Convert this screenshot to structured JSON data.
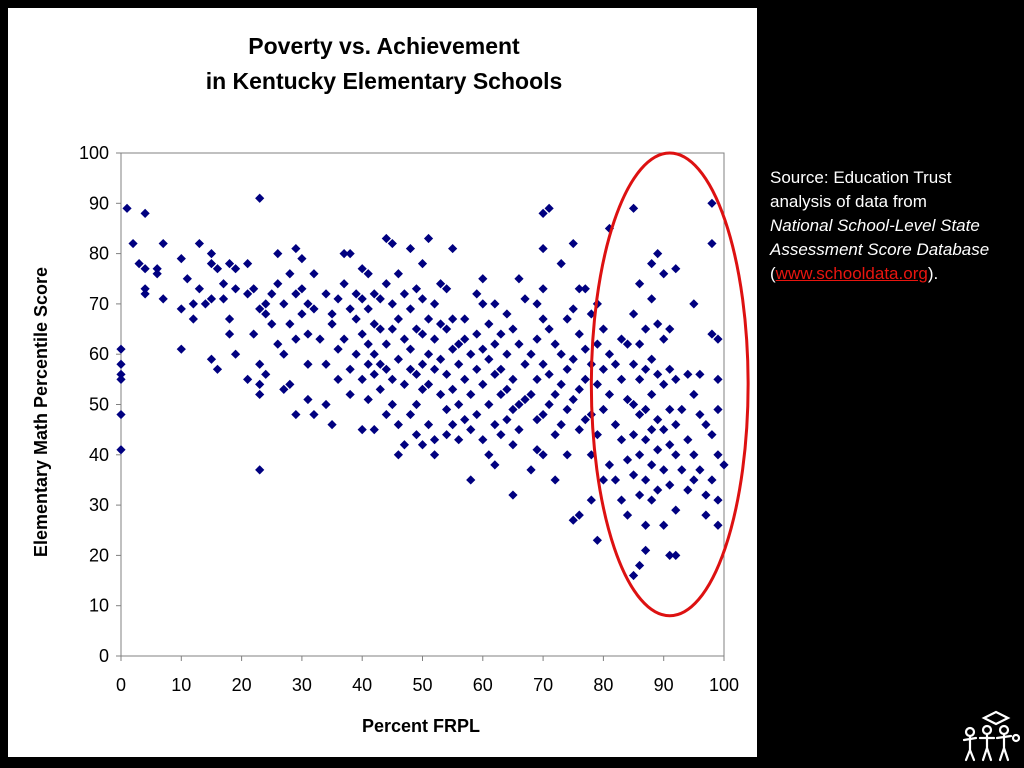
{
  "chart_data": {
    "type": "scatter",
    "title_line1": "Poverty vs. Achievement",
    "title_line2": "in Kentucky Elementary Schools",
    "xlabel": "Percent FRPL",
    "ylabel": "Elementary Math Percentile Score",
    "xlim": [
      0,
      100
    ],
    "ylim": [
      0,
      100
    ],
    "xticks": [
      "0",
      "10",
      "20",
      "30",
      "40",
      "50",
      "60",
      "70",
      "80",
      "90",
      "100"
    ],
    "yticks": [
      "0",
      "10",
      "20",
      "30",
      "40",
      "50",
      "60",
      "70",
      "80",
      "90",
      "100"
    ],
    "marker": "diamond",
    "marker_color": "#000080",
    "highlight": {
      "shape": "ellipse",
      "color": "#dd1111",
      "x_range": [
        78,
        104
      ],
      "y_range": [
        8,
        100
      ]
    },
    "points": [
      [
        0,
        61
      ],
      [
        0,
        58
      ],
      [
        0,
        56
      ],
      [
        0,
        55
      ],
      [
        0,
        48
      ],
      [
        0,
        41
      ],
      [
        1,
        89
      ],
      [
        2,
        82
      ],
      [
        3,
        78
      ],
      [
        4,
        88
      ],
      [
        4,
        77
      ],
      [
        4,
        73
      ],
      [
        4,
        72
      ],
      [
        6,
        77
      ],
      [
        6,
        76
      ],
      [
        7,
        82
      ],
      [
        7,
        71
      ],
      [
        10,
        79
      ],
      [
        10,
        69
      ],
      [
        10,
        61
      ],
      [
        11,
        75
      ],
      [
        12,
        70
      ],
      [
        12,
        67
      ],
      [
        13,
        82
      ],
      [
        13,
        73
      ],
      [
        14,
        70
      ],
      [
        15,
        80
      ],
      [
        15,
        78
      ],
      [
        15,
        71
      ],
      [
        15,
        59
      ],
      [
        16,
        57
      ],
      [
        16,
        77
      ],
      [
        17,
        74
      ],
      [
        17,
        71
      ],
      [
        18,
        78
      ],
      [
        18,
        67
      ],
      [
        18,
        64
      ],
      [
        19,
        77
      ],
      [
        19,
        73
      ],
      [
        19,
        60
      ],
      [
        21,
        78
      ],
      [
        21,
        72
      ],
      [
        21,
        55
      ],
      [
        22,
        64
      ],
      [
        22,
        73
      ],
      [
        23,
        91
      ],
      [
        23,
        69
      ],
      [
        23,
        58
      ],
      [
        23,
        54
      ],
      [
        23,
        52
      ],
      [
        23,
        37
      ],
      [
        24,
        70
      ],
      [
        24,
        68
      ],
      [
        24,
        56
      ],
      [
        25,
        66
      ],
      [
        25,
        72
      ],
      [
        26,
        80
      ],
      [
        26,
        74
      ],
      [
        26,
        62
      ],
      [
        27,
        70
      ],
      [
        27,
        60
      ],
      [
        27,
        53
      ],
      [
        28,
        76
      ],
      [
        28,
        66
      ],
      [
        28,
        54
      ],
      [
        29,
        81
      ],
      [
        29,
        72
      ],
      [
        29,
        63
      ],
      [
        29,
        48
      ],
      [
        30,
        79
      ],
      [
        30,
        73
      ],
      [
        30,
        68
      ],
      [
        31,
        70
      ],
      [
        31,
        64
      ],
      [
        31,
        58
      ],
      [
        31,
        51
      ],
      [
        32,
        76
      ],
      [
        32,
        69
      ],
      [
        32,
        48
      ],
      [
        33,
        63
      ],
      [
        34,
        72
      ],
      [
        34,
        58
      ],
      [
        34,
        50
      ],
      [
        35,
        68
      ],
      [
        35,
        66
      ],
      [
        35,
        46
      ],
      [
        36,
        71
      ],
      [
        36,
        61
      ],
      [
        36,
        55
      ],
      [
        37,
        80
      ],
      [
        37,
        74
      ],
      [
        37,
        63
      ],
      [
        38,
        80
      ],
      [
        38,
        69
      ],
      [
        38,
        57
      ],
      [
        38,
        52
      ],
      [
        39,
        72
      ],
      [
        39,
        67
      ],
      [
        39,
        60
      ],
      [
        40,
        77
      ],
      [
        40,
        71
      ],
      [
        40,
        64
      ],
      [
        40,
        55
      ],
      [
        40,
        45
      ],
      [
        41,
        76
      ],
      [
        41,
        69
      ],
      [
        41,
        62
      ],
      [
        41,
        58
      ],
      [
        41,
        51
      ],
      [
        42,
        72
      ],
      [
        42,
        66
      ],
      [
        42,
        60
      ],
      [
        42,
        56
      ],
      [
        42,
        45
      ],
      [
        43,
        71
      ],
      [
        43,
        65
      ],
      [
        43,
        58
      ],
      [
        43,
        53
      ],
      [
        44,
        83
      ],
      [
        44,
        74
      ],
      [
        44,
        62
      ],
      [
        44,
        57
      ],
      [
        44,
        48
      ],
      [
        45,
        82
      ],
      [
        45,
        70
      ],
      [
        45,
        65
      ],
      [
        45,
        55
      ],
      [
        45,
        50
      ],
      [
        46,
        76
      ],
      [
        46,
        67
      ],
      [
        46,
        59
      ],
      [
        46,
        46
      ],
      [
        46,
        40
      ],
      [
        47,
        72
      ],
      [
        47,
        63
      ],
      [
        47,
        54
      ],
      [
        47,
        42
      ],
      [
        48,
        81
      ],
      [
        48,
        69
      ],
      [
        48,
        61
      ],
      [
        48,
        57
      ],
      [
        48,
        48
      ],
      [
        49,
        73
      ],
      [
        49,
        65
      ],
      [
        49,
        56
      ],
      [
        49,
        50
      ],
      [
        49,
        44
      ],
      [
        50,
        78
      ],
      [
        50,
        71
      ],
      [
        50,
        64
      ],
      [
        50,
        58
      ],
      [
        50,
        53
      ],
      [
        50,
        42
      ],
      [
        51,
        83
      ],
      [
        51,
        67
      ],
      [
        51,
        60
      ],
      [
        51,
        54
      ],
      [
        51,
        46
      ],
      [
        52,
        70
      ],
      [
        52,
        63
      ],
      [
        52,
        57
      ],
      [
        52,
        43
      ],
      [
        52,
        40
      ],
      [
        53,
        74
      ],
      [
        53,
        66
      ],
      [
        53,
        59
      ],
      [
        53,
        52
      ],
      [
        54,
        73
      ],
      [
        54,
        65
      ],
      [
        54,
        56
      ],
      [
        54,
        49
      ],
      [
        54,
        44
      ],
      [
        55,
        81
      ],
      [
        55,
        67
      ],
      [
        55,
        61
      ],
      [
        55,
        53
      ],
      [
        55,
        46
      ],
      [
        56,
        62
      ],
      [
        56,
        58
      ],
      [
        56,
        50
      ],
      [
        56,
        43
      ],
      [
        57,
        67
      ],
      [
        57,
        63
      ],
      [
        57,
        55
      ],
      [
        57,
        47
      ],
      [
        58,
        60
      ],
      [
        58,
        52
      ],
      [
        58,
        45
      ],
      [
        58,
        35
      ],
      [
        59,
        72
      ],
      [
        59,
        64
      ],
      [
        59,
        57
      ],
      [
        59,
        48
      ],
      [
        60,
        75
      ],
      [
        60,
        70
      ],
      [
        60,
        61
      ],
      [
        60,
        54
      ],
      [
        60,
        43
      ],
      [
        61,
        66
      ],
      [
        61,
        59
      ],
      [
        61,
        50
      ],
      [
        61,
        40
      ],
      [
        62,
        70
      ],
      [
        62,
        62
      ],
      [
        62,
        56
      ],
      [
        62,
        46
      ],
      [
        62,
        38
      ],
      [
        63,
        64
      ],
      [
        63,
        57
      ],
      [
        63,
        52
      ],
      [
        63,
        44
      ],
      [
        64,
        68
      ],
      [
        64,
        60
      ],
      [
        64,
        53
      ],
      [
        64,
        47
      ],
      [
        65,
        65
      ],
      [
        65,
        55
      ],
      [
        65,
        49
      ],
      [
        65,
        42
      ],
      [
        65,
        32
      ],
      [
        66,
        75
      ],
      [
        66,
        62
      ],
      [
        66,
        50
      ],
      [
        66,
        45
      ],
      [
        67,
        71
      ],
      [
        67,
        58
      ],
      [
        67,
        51
      ],
      [
        68,
        60
      ],
      [
        68,
        52
      ],
      [
        68,
        37
      ],
      [
        69,
        70
      ],
      [
        69,
        63
      ],
      [
        69,
        55
      ],
      [
        69,
        47
      ],
      [
        69,
        41
      ],
      [
        70,
        88
      ],
      [
        70,
        81
      ],
      [
        70,
        73
      ],
      [
        70,
        67
      ],
      [
        70,
        58
      ],
      [
        70,
        48
      ],
      [
        70,
        40
      ],
      [
        71,
        89
      ],
      [
        71,
        65
      ],
      [
        71,
        56
      ],
      [
        71,
        50
      ],
      [
        72,
        62
      ],
      [
        72,
        52
      ],
      [
        72,
        44
      ],
      [
        72,
        35
      ],
      [
        73,
        78
      ],
      [
        73,
        60
      ],
      [
        73,
        54
      ],
      [
        73,
        46
      ],
      [
        74,
        67
      ],
      [
        74,
        57
      ],
      [
        74,
        49
      ],
      [
        74,
        40
      ],
      [
        75,
        82
      ],
      [
        75,
        69
      ],
      [
        75,
        59
      ],
      [
        75,
        51
      ],
      [
        75,
        27
      ],
      [
        76,
        73
      ],
      [
        76,
        64
      ],
      [
        76,
        53
      ],
      [
        76,
        45
      ],
      [
        76,
        28
      ],
      [
        77,
        73
      ],
      [
        77,
        61
      ],
      [
        77,
        55
      ],
      [
        77,
        47
      ],
      [
        78,
        68
      ],
      [
        78,
        58
      ],
      [
        78,
        48
      ],
      [
        78,
        40
      ],
      [
        78,
        31
      ],
      [
        79,
        70
      ],
      [
        79,
        62
      ],
      [
        79,
        54
      ],
      [
        79,
        44
      ],
      [
        79,
        23
      ],
      [
        80,
        65
      ],
      [
        80,
        57
      ],
      [
        80,
        49
      ],
      [
        80,
        35
      ],
      [
        81,
        85
      ],
      [
        81,
        60
      ],
      [
        81,
        52
      ],
      [
        81,
        38
      ],
      [
        82,
        58
      ],
      [
        82,
        46
      ],
      [
        82,
        35
      ],
      [
        83,
        63
      ],
      [
        83,
        55
      ],
      [
        83,
        43
      ],
      [
        83,
        31
      ],
      [
        84,
        62
      ],
      [
        84,
        51
      ],
      [
        84,
        39
      ],
      [
        84,
        28
      ],
      [
        85,
        89
      ],
      [
        85,
        68
      ],
      [
        85,
        58
      ],
      [
        85,
        50
      ],
      [
        85,
        44
      ],
      [
        85,
        36
      ],
      [
        85,
        16
      ],
      [
        86,
        74
      ],
      [
        86,
        62
      ],
      [
        86,
        55
      ],
      [
        86,
        48
      ],
      [
        86,
        40
      ],
      [
        86,
        32
      ],
      [
        86,
        18
      ],
      [
        87,
        65
      ],
      [
        87,
        57
      ],
      [
        87,
        49
      ],
      [
        87,
        43
      ],
      [
        87,
        35
      ],
      [
        87,
        26
      ],
      [
        87,
        21
      ],
      [
        88,
        78
      ],
      [
        88,
        71
      ],
      [
        88,
        59
      ],
      [
        88,
        52
      ],
      [
        88,
        45
      ],
      [
        88,
        38
      ],
      [
        88,
        31
      ],
      [
        89,
        80
      ],
      [
        89,
        66
      ],
      [
        89,
        56
      ],
      [
        89,
        47
      ],
      [
        89,
        41
      ],
      [
        89,
        33
      ],
      [
        90,
        76
      ],
      [
        90,
        63
      ],
      [
        90,
        54
      ],
      [
        90,
        45
      ],
      [
        90,
        37
      ],
      [
        90,
        26
      ],
      [
        91,
        65
      ],
      [
        91,
        57
      ],
      [
        91,
        49
      ],
      [
        91,
        42
      ],
      [
        91,
        34
      ],
      [
        91,
        20
      ],
      [
        92,
        77
      ],
      [
        92,
        55
      ],
      [
        92,
        46
      ],
      [
        92,
        40
      ],
      [
        92,
        29
      ],
      [
        92,
        20
      ],
      [
        93,
        49
      ],
      [
        93,
        37
      ],
      [
        94,
        56
      ],
      [
        94,
        43
      ],
      [
        94,
        33
      ],
      [
        95,
        70
      ],
      [
        95,
        52
      ],
      [
        95,
        40
      ],
      [
        95,
        35
      ],
      [
        96,
        56
      ],
      [
        96,
        48
      ],
      [
        96,
        37
      ],
      [
        97,
        46
      ],
      [
        97,
        32
      ],
      [
        97,
        28
      ],
      [
        98,
        90
      ],
      [
        98,
        82
      ],
      [
        98,
        64
      ],
      [
        98,
        44
      ],
      [
        98,
        35
      ],
      [
        99,
        63
      ],
      [
        99,
        55
      ],
      [
        99,
        49
      ],
      [
        99,
        40
      ],
      [
        99,
        31
      ],
      [
        99,
        26
      ],
      [
        100,
        38
      ]
    ]
  },
  "source_note": {
    "label": "Source:",
    "text1": " Education Trust analysis of data from",
    "italic": "National School-Level State Assessment Score Database",
    "paren_open": "(",
    "link": "www.schooldata.org",
    "paren_close": ")."
  },
  "logo": {
    "icon": "children-logo-icon"
  }
}
